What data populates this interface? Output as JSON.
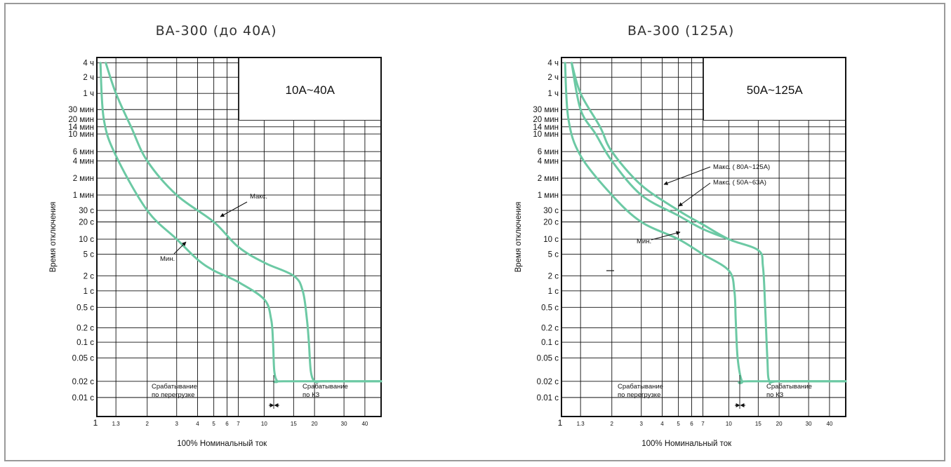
{
  "chart_data": [
    {
      "type": "line",
      "title": "ВА-300 (до 40А)",
      "range_label": "10А~40А",
      "xlabel": "100% Номинальный ток",
      "ylabel": "Время отключения",
      "x_scale": "log",
      "xlim": [
        1,
        50
      ],
      "x_ticks": [
        "1",
        "1.3",
        "2",
        "3",
        "4",
        "5",
        "6",
        "7",
        "10",
        "15",
        "20",
        "30",
        "40"
      ],
      "y_ticks": [
        "4 ч",
        "2 ч",
        "1 ч",
        "30 мин",
        "20 мин",
        "14 мин",
        "10 мин",
        "6 мин",
        "4 мин",
        "2 мин",
        "1 мин",
        "30 с",
        "20 с",
        "10 с",
        "5 с",
        "2 с",
        "1 с",
        "0.5 с",
        "0.2 с",
        "0.1 с",
        "0.05 с",
        "0.02 с",
        "0.01 с"
      ],
      "series": [
        {
          "name": "Макс.",
          "x": [
            1.13,
            1.3,
            1.6,
            2,
            3,
            5,
            7,
            10,
            15,
            17,
            18,
            18.5,
            19,
            20,
            22,
            30,
            50
          ],
          "y": [
            "4 ч",
            "1 ч",
            "14 мин",
            "4 мин",
            "1 мин",
            "20 с",
            "7 с",
            "3.5 с",
            "2 с",
            "1 с",
            "0.3 с",
            "0.1 с",
            "0.03 с",
            "0.02 с",
            "0.02 с",
            "0.02 с",
            "0.02 с"
          ]
        },
        {
          "name": "Мин.",
          "x": [
            1.05,
            1.1,
            1.3,
            2,
            3,
            4,
            5,
            7,
            10,
            11,
            11.3,
            11.5,
            12,
            13,
            50
          ],
          "y": [
            "4 ч",
            "20 мин",
            "5 мин",
            "30 с",
            "10 с",
            "4 с",
            "2.5 с",
            "1.5 с",
            "0.7 с",
            "0.3 с",
            "0.1 с",
            "0.03 с",
            "0.02 с",
            "0.02 с",
            "0.02 с"
          ]
        }
      ],
      "annotations": [
        "Макс.",
        "Мин.",
        "Срабатывание",
        "по перегрузке",
        "Срабатывание",
        "по КЗ"
      ]
    },
    {
      "type": "line",
      "title": "ВА-300 (125А)",
      "range_label": "50А~125А",
      "xlabel": "100% Номинальный ток",
      "ylabel": "Время отключения",
      "x_scale": "log",
      "xlim": [
        1,
        50
      ],
      "x_ticks": [
        "1",
        "1.3",
        "2",
        "3",
        "4",
        "5",
        "6",
        "7",
        "10",
        "15",
        "20",
        "30",
        "40"
      ],
      "y_ticks": [
        "4 ч",
        "2 ч",
        "1 ч",
        "30 мин",
        "20 мин",
        "14 мин",
        "10 мин",
        "6 мин",
        "4 мин",
        "2 мин",
        "1 мин",
        "30 с",
        "20 с",
        "10 с",
        "5 с",
        "2 с",
        "1 с",
        "0.5 с",
        "0.2 с",
        "0.1 с",
        "0.05 с",
        "0.02 с",
        "0.01 с"
      ],
      "series": [
        {
          "name": "Макс. ( 80А~125А)",
          "x": [
            1.15,
            1.3,
            1.7,
            2,
            3,
            5,
            7,
            10,
            15,
            16,
            16.5,
            17,
            17.5,
            20,
            50
          ],
          "y": [
            "4 ч",
            "1 ч",
            "14 мин",
            "6 мин",
            "1.5 мин",
            "30 с",
            "18 с",
            "10 с",
            "6 с",
            "3 с",
            "0.5 с",
            "0.05 с",
            "0.02 с",
            "0.02 с",
            "0.02 с"
          ]
        },
        {
          "name": "Макс. ( 50А~63А)",
          "x": [
            1.15,
            1.3,
            1.6,
            2,
            3,
            5,
            7,
            10
          ],
          "y": [
            "4 ч",
            "30 мин",
            "10 мин",
            "4 мин",
            "1 мин",
            "25 с",
            "15 с",
            "10 с"
          ]
        },
        {
          "name": "Мин.",
          "x": [
            1.05,
            1.1,
            1.3,
            2,
            3,
            5,
            7,
            10,
            10.8,
            11,
            11.3,
            12,
            13,
            50
          ],
          "y": [
            "4 ч",
            "20 мин",
            "5 мин",
            "1 мин",
            "20 с",
            "10 с",
            "5 с",
            "2.5 с",
            "1 с",
            "0.3 с",
            "0.05 с",
            "0.02 с",
            "0.02 с",
            "0.02 с"
          ]
        }
      ],
      "annotations": [
        "Макс. ( 80А~125А)",
        "Макс. ( 50А~63А)",
        "Мин.",
        "Срабатывание",
        "по перегрузке",
        "Срабатывание",
        "по КЗ"
      ]
    }
  ]
}
